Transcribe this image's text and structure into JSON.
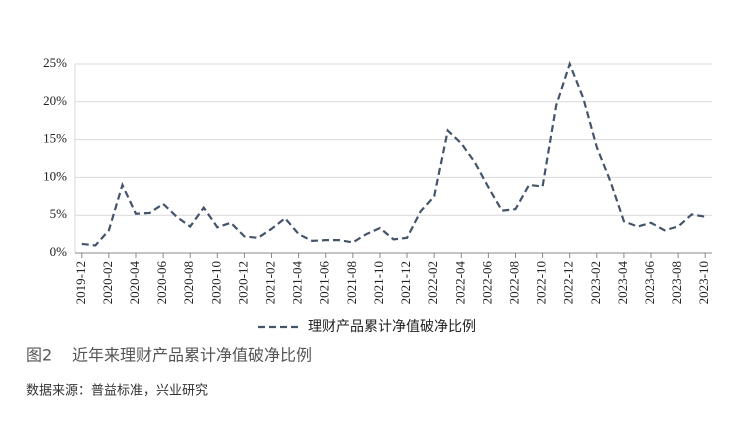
{
  "chart_data": {
    "type": "line",
    "categories": [
      "2019-12",
      null,
      "2020-02",
      null,
      "2020-04",
      null,
      "2020-06",
      null,
      "2020-08",
      null,
      "2020-10",
      null,
      "2020-12",
      null,
      "2021-02",
      null,
      "2021-04",
      null,
      "2021-06",
      null,
      "2021-08",
      null,
      "2021-10",
      null,
      "2021-12",
      null,
      "2022-02",
      null,
      "2022-04",
      null,
      "2022-06",
      null,
      "2022-08",
      null,
      "2022-10",
      null,
      "2022-12",
      null,
      "2023-02",
      null,
      "2023-04",
      null,
      "2023-06",
      null,
      "2023-08",
      null,
      "2023-10"
    ],
    "series": [
      {
        "name": "理财产品累计净值破净比例",
        "color": "#44546a",
        "dashed": true,
        "values": [
          1.2,
          1.0,
          3.0,
          9.0,
          5.2,
          5.3,
          6.5,
          4.8,
          3.5,
          6.0,
          3.4,
          4.0,
          2.2,
          2.0,
          3.2,
          4.6,
          2.5,
          1.6,
          1.7,
          1.7,
          1.4,
          2.5,
          3.3,
          1.8,
          2.0,
          5.5,
          7.5,
          16.2,
          14.5,
          12.0,
          8.7,
          5.6,
          5.8,
          9.0,
          8.8,
          19.5,
          25.0,
          20.5,
          14.0,
          9.5,
          4.2,
          3.5,
          4.0,
          3.0,
          3.5,
          5.1,
          4.8
        ]
      }
    ],
    "ylim": [
      0,
      25
    ],
    "yticks": [
      {
        "value": 0,
        "label": "0%"
      },
      {
        "value": 5,
        "label": "5%"
      },
      {
        "value": 10,
        "label": "10%"
      },
      {
        "value": 15,
        "label": "15%"
      },
      {
        "value": 20,
        "label": "20%"
      },
      {
        "value": 25,
        "label": "25%"
      }
    ],
    "grid": true,
    "legend": "bottom",
    "figure_label": "图2",
    "title": "近年来理财产品累计净值破净比例",
    "source": "数据来源：普益标准，兴业研究"
  }
}
